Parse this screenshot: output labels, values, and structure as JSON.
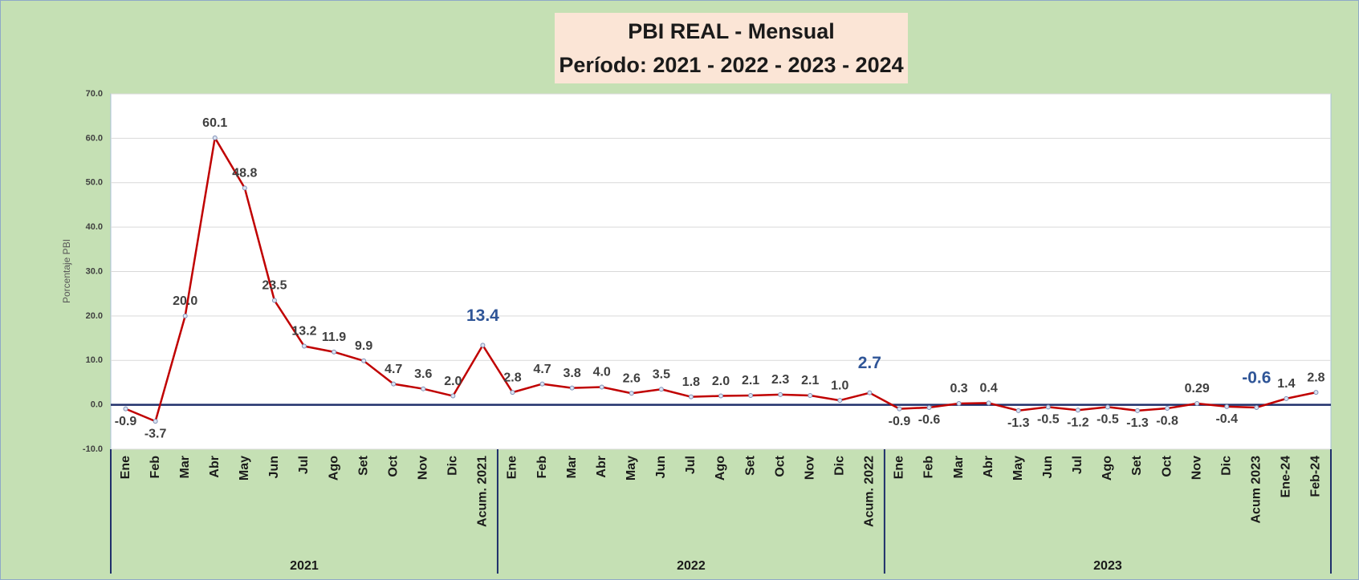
{
  "chart_data": {
    "type": "line",
    "title": "PBI REAL  - Mensual",
    "subtitle": "Período: 2021 - 2022 - 2023 - 2024",
    "y_label": "Porcentaje PBI",
    "groups": [
      {
        "name": "2021",
        "categories": [
          "Ene",
          "Feb",
          "Mar",
          "Abr",
          "May",
          "Jun",
          "Jul",
          "Ago",
          "Set",
          "Oct",
          "Nov",
          "Dic",
          "Acum. 2021"
        ]
      },
      {
        "name": "2022",
        "categories": [
          "Ene",
          "Feb",
          "Mar",
          "Abr",
          "May",
          "Jun",
          "Jul",
          "Ago",
          "Set",
          "Oct",
          "Nov",
          "Dic",
          "Acum. 2022"
        ]
      },
      {
        "name": "2023",
        "categories": [
          "Ene",
          "Feb",
          "Mar",
          "Abr",
          "May",
          "Jun",
          "Jul",
          "Ago",
          "Set",
          "Oct",
          "Nov",
          "Dic",
          "Acum 2023",
          "Ene-24",
          "Feb-24"
        ]
      }
    ],
    "series": [
      {
        "name": "PBI",
        "color": "#c00000",
        "values": [
          -0.9,
          -3.7,
          20.0,
          60.1,
          48.8,
          23.5,
          13.2,
          11.9,
          9.9,
          4.7,
          3.6,
          2.0,
          13.4,
          2.8,
          4.7,
          3.8,
          4.0,
          2.6,
          3.5,
          1.8,
          2.0,
          2.1,
          2.3,
          2.1,
          1.0,
          2.7,
          -0.9,
          -0.6,
          0.3,
          0.4,
          -1.3,
          -0.5,
          -1.2,
          -0.5,
          -1.3,
          -0.8,
          0.29,
          -0.4,
          -0.6,
          1.4,
          2.8
        ],
        "value_labels": [
          "-0.9",
          "-3.7",
          "20.0",
          "60.1",
          "48.8",
          "23.5",
          "13.2",
          "11.9",
          "9.9",
          "4.7",
          "3.6",
          "2.0",
          "13.4",
          "2.8",
          "4.7",
          "3.8",
          "4.0",
          "2.6",
          "3.5",
          "1.8",
          "2.0",
          "2.1",
          "2.3",
          "2.1",
          "1.0",
          "2.7",
          "-0.9",
          "-0.6",
          "0.3",
          "0.4",
          "-1.3",
          "-0.5",
          "-1.2",
          "-0.5",
          "-1.3",
          "-0.8",
          "0.29",
          "-0.4",
          "-0.6",
          "1.4",
          "2.8"
        ]
      }
    ],
    "highlight_points": [
      12,
      25,
      38
    ],
    "highlight_color": "#2f5597",
    "ylim": [
      -10,
      70
    ],
    "yticks": [
      {
        "value": -10,
        "label": "-10.0"
      },
      {
        "value": 0,
        "label": "0.0"
      },
      {
        "value": 10,
        "label": "10.0"
      },
      {
        "value": 20,
        "label": "20.0"
      },
      {
        "value": 30,
        "label": "30.0"
      },
      {
        "value": 40,
        "label": "40.0"
      },
      {
        "value": 50,
        "label": "50.0"
      },
      {
        "value": 60,
        "label": "60.0"
      },
      {
        "value": 70,
        "label": "70.0"
      }
    ],
    "grid": true
  }
}
